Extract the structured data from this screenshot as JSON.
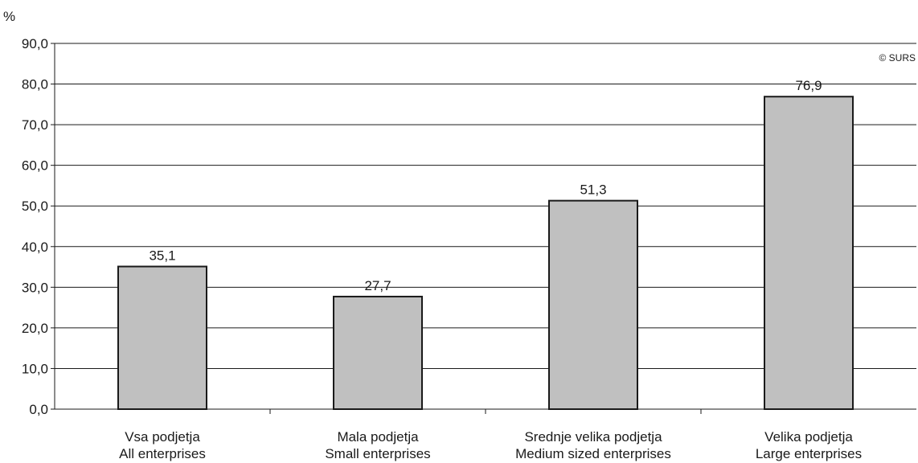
{
  "chart_data": {
    "type": "bar",
    "y_unit": "%",
    "copyright": "© SURS",
    "categories": [
      [
        "Vsa podjetja",
        "All enterprises"
      ],
      [
        "Mala podjetja",
        "Small enterprises"
      ],
      [
        "Srednje velika podjetja",
        "Medium sized enterprises"
      ],
      [
        "Velika podjetja",
        "Large enterprises"
      ]
    ],
    "values": [
      35.1,
      27.7,
      51.3,
      76.9
    ],
    "value_labels": [
      "35,1",
      "27,7",
      "51,3",
      "76,9"
    ],
    "ylim": [
      0,
      90
    ],
    "yticks": [
      0,
      10,
      20,
      30,
      40,
      50,
      60,
      70,
      80,
      90
    ],
    "ytick_labels": [
      "0,0",
      "10,0",
      "20,0",
      "30,0",
      "40,0",
      "50,0",
      "60,0",
      "70,0",
      "80,0",
      "90,0"
    ],
    "grid": true,
    "colors": {
      "bar_fill": "#c0c0c0",
      "bar_stroke": "#1a1a1a",
      "grid": "#1a1a1a"
    }
  }
}
